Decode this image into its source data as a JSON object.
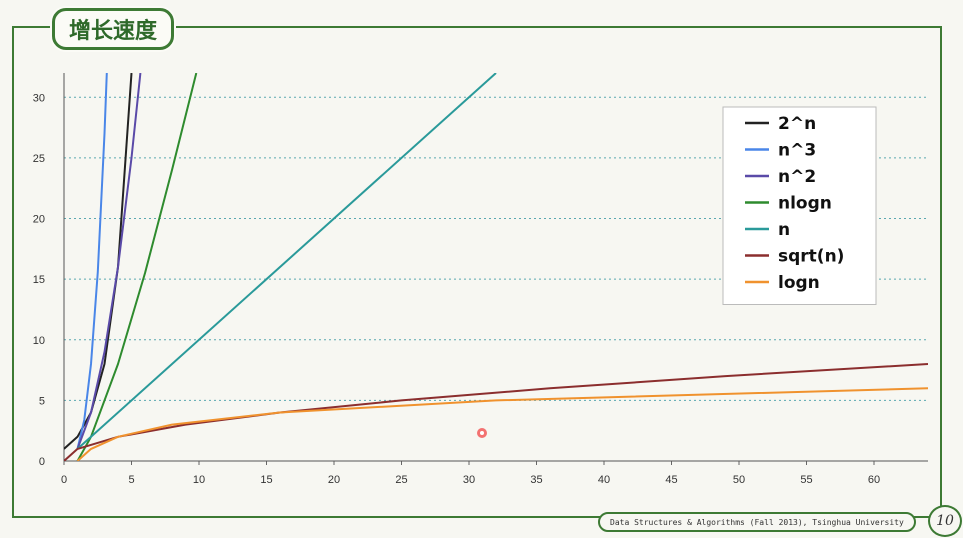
{
  "slide": {
    "title": "增长速度",
    "footer": "Data Structures & Algorithms (Fall 2013), Tsinghua University",
    "page_number": "10"
  },
  "chart_data": {
    "type": "line",
    "xlim": [
      0,
      64
    ],
    "ylim": [
      0,
      32
    ],
    "x_ticks": [
      0,
      5,
      10,
      15,
      20,
      25,
      30,
      35,
      40,
      45,
      50,
      55,
      60
    ],
    "y_ticks": [
      0,
      5,
      10,
      15,
      20,
      25,
      30
    ],
    "grid": "horizontal dotted",
    "legend_position": "top-right",
    "series": [
      {
        "name": "2^n",
        "color": "#222222",
        "x": [
          0,
          1,
          2,
          3,
          4,
          5
        ],
        "y": [
          1,
          2,
          4,
          8,
          16,
          32
        ]
      },
      {
        "name": "n^3",
        "color": "#4a86e8",
        "x": [
          1,
          1.5,
          2,
          2.5,
          3,
          3.17
        ],
        "y": [
          1,
          3.4,
          8,
          15.6,
          27,
          32
        ]
      },
      {
        "name": "n^2",
        "color": "#5a4aa8",
        "x": [
          1,
          2,
          3,
          4,
          5,
          5.66
        ],
        "y": [
          1,
          4,
          9,
          16,
          25,
          32
        ]
      },
      {
        "name": "nlogn",
        "color": "#2e8b2e",
        "x": [
          1,
          2,
          4,
          6,
          8,
          9.8
        ],
        "y": [
          0,
          2,
          8,
          15.5,
          24,
          32
        ]
      },
      {
        "name": "n",
        "color": "#2a9a9a",
        "x": [
          1,
          32
        ],
        "y": [
          1,
          32
        ]
      },
      {
        "name": "sqrt(n)",
        "color": "#8b2e2e",
        "x": [
          0,
          1,
          4,
          9,
          16,
          25,
          36,
          49,
          64
        ],
        "y": [
          0,
          1,
          2,
          3,
          4,
          5,
          6,
          7,
          8
        ]
      },
      {
        "name": "logn",
        "color": "#f0922e",
        "x": [
          1,
          2,
          4,
          8,
          16,
          32,
          64
        ],
        "y": [
          0,
          1,
          2,
          3,
          4,
          5,
          6
        ]
      }
    ]
  }
}
